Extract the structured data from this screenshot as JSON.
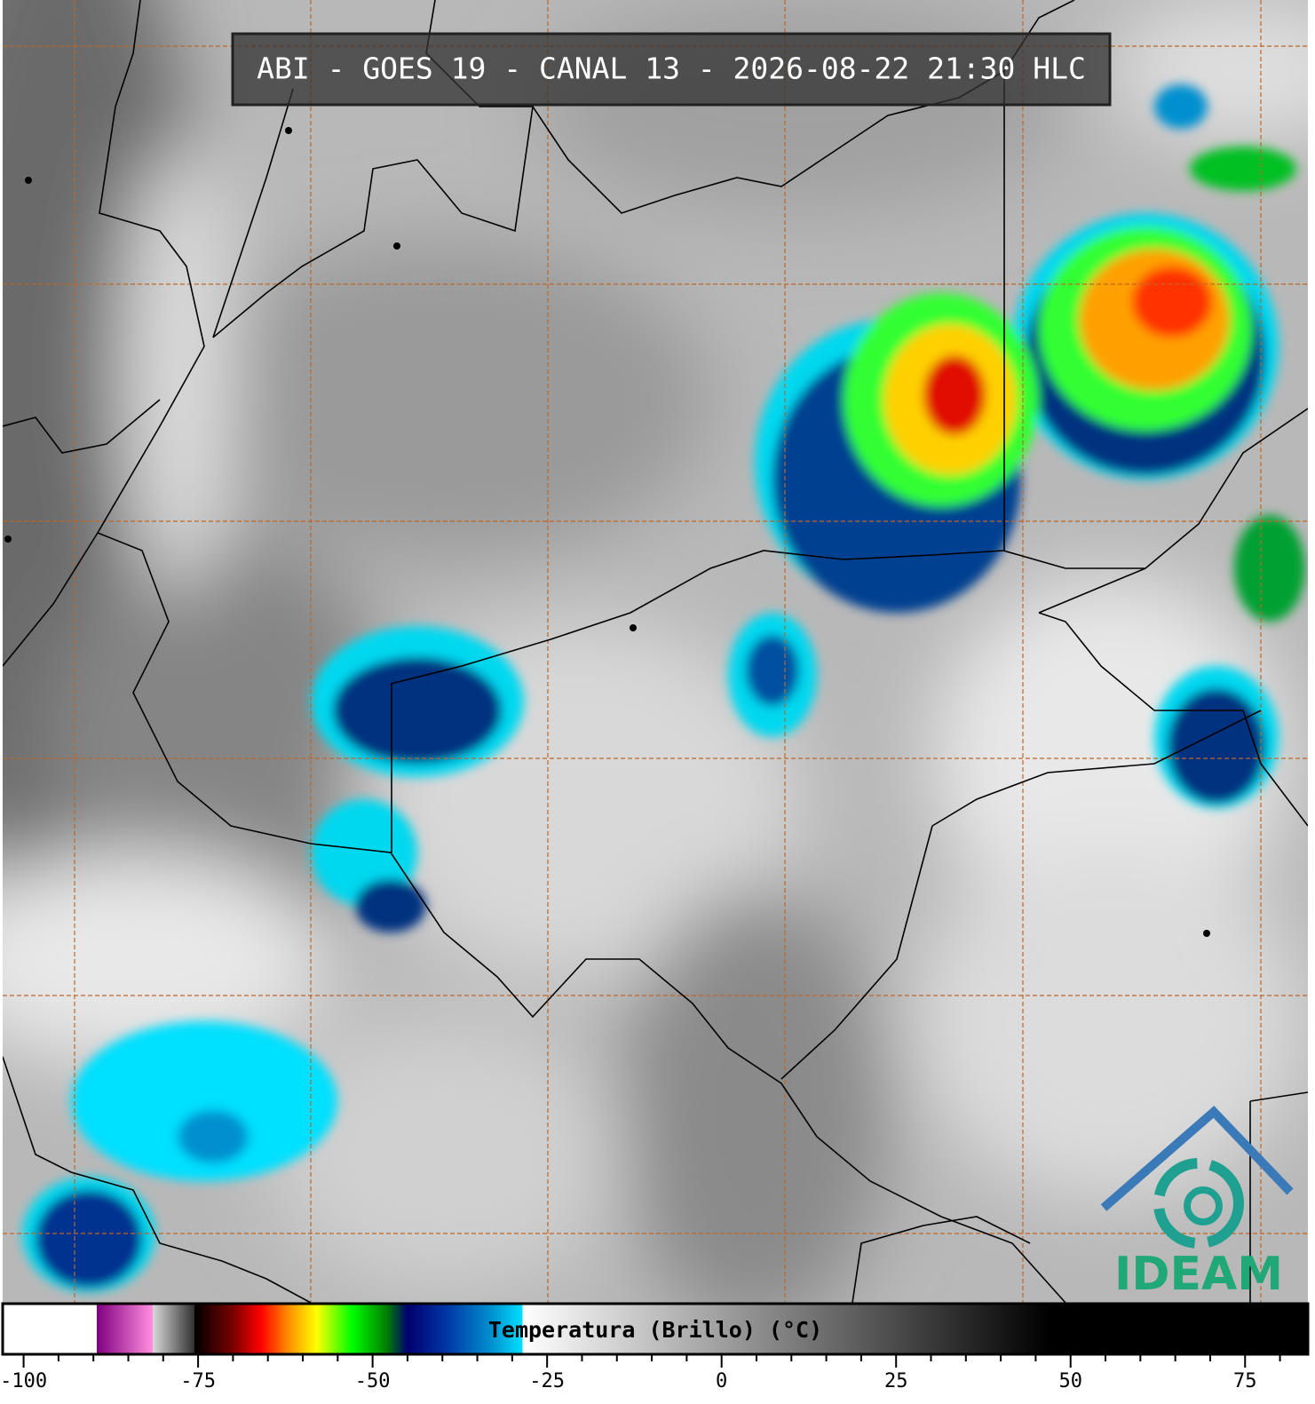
{
  "title": "ABI - GOES 19 - CANAL 13 - 2026-08-22 21:30 HLC",
  "logo": "IDEAM",
  "colorbar": {
    "label": "Temperatura (Brillo) (°C)",
    "xlim": [
      -103,
      84
    ],
    "xticks": [
      -100,
      -75,
      -50,
      -25,
      0,
      25,
      50,
      75
    ],
    "minor_xticks": [
      -95,
      -90,
      -85,
      -80,
      -70,
      -65,
      -60,
      -55,
      -45,
      -40,
      -35,
      -30,
      -20,
      -15,
      -10,
      -5,
      5,
      10,
      15,
      20,
      30,
      35,
      40,
      45,
      55,
      60,
      65,
      70,
      80
    ],
    "colors": [
      [
        -103,
        "#ffffff"
      ],
      [
        -89.5,
        "#ffffff"
      ],
      [
        -89.5,
        "#800080"
      ],
      [
        -81.5,
        "#ff90e0"
      ],
      [
        -81.5,
        "#d8d8d8"
      ],
      [
        -75.5,
        "#303030"
      ],
      [
        -75.5,
        "#000000"
      ],
      [
        -70,
        "#7a0000"
      ],
      [
        -66,
        "#ff0000"
      ],
      [
        -62,
        "#ff9000"
      ],
      [
        -58,
        "#ffff00"
      ],
      [
        -53,
        "#00ff00"
      ],
      [
        -48,
        "#008000"
      ],
      [
        -45,
        "#000070"
      ],
      [
        -40,
        "#0030a0"
      ],
      [
        -33,
        "#0090d0"
      ],
      [
        -28.5,
        "#00e0ff"
      ],
      [
        -28.5,
        "#ffffff"
      ],
      [
        47,
        "#000000"
      ],
      [
        84,
        "#000000"
      ]
    ]
  }
}
